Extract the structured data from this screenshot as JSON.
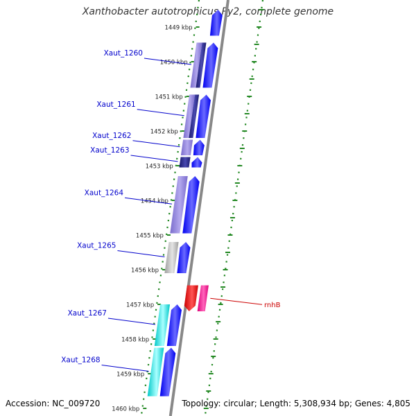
{
  "title": "Xanthobacter autotrophicus Py2, complete genome",
  "footer": {
    "accession": "Accession: NC_009720",
    "topology": "Topology: circular; Length: 5,308,934 bp; Genes: 4,805"
  },
  "colors": {
    "background": "#ffffff",
    "backbone": "#888888",
    "tick": "#228822",
    "label_blue": "#0000cc",
    "label_red": "#cc0000",
    "cds": "#0000ee",
    "gene_purple": "#7a6ccc",
    "gene_dark": "#1a1a6e",
    "gene_gray": "#b8b8b8",
    "gene_cyan": "#00e0e0",
    "rna_red": "#dd0000",
    "rna_pink": "#ee1188"
  },
  "scale": {
    "ticks": [
      {
        "kbp": 1449,
        "label": "1449 kbp"
      },
      {
        "kbp": 1450,
        "label": "1450 kbp"
      },
      {
        "kbp": 1451,
        "label": "1451 kbp"
      },
      {
        "kbp": 1452,
        "label": "1452 kbp"
      },
      {
        "kbp": 1453,
        "label": "1453 kbp"
      },
      {
        "kbp": 1454,
        "label": "1454 kbp"
      },
      {
        "kbp": 1455,
        "label": "1455 kbp"
      },
      {
        "kbp": 1456,
        "label": "1456 kbp"
      },
      {
        "kbp": 1457,
        "label": "1457 kbp"
      },
      {
        "kbp": 1458,
        "label": "1458 kbp"
      },
      {
        "kbp": 1459,
        "label": "1459 kbp"
      },
      {
        "kbp": 1460,
        "label": "1460 kbp"
      }
    ]
  },
  "genes": [
    {
      "label": "",
      "strand": "left",
      "start": 1448.5,
      "end": 1449.25,
      "type": "cds-only"
    },
    {
      "label": "Xaut_1260",
      "strand": "left",
      "start": 1449.45,
      "end": 1450.75,
      "type": "protein",
      "color": "purple-dark"
    },
    {
      "label": "Xaut_1261",
      "strand": "left",
      "start": 1450.95,
      "end": 1452.2,
      "type": "protein",
      "color": "purple-dark"
    },
    {
      "label": "Xaut_1262",
      "strand": "left",
      "start": 1452.25,
      "end": 1452.7,
      "type": "protein",
      "color": "purple"
    },
    {
      "label": "Xaut_1263",
      "strand": "left",
      "start": 1452.75,
      "end": 1453.05,
      "type": "protein",
      "color": "dark"
    },
    {
      "label": "Xaut_1264",
      "strand": "left",
      "start": 1453.3,
      "end": 1454.95,
      "type": "protein",
      "color": "purple"
    },
    {
      "label": "Xaut_1265",
      "strand": "left",
      "start": 1455.2,
      "end": 1456.1,
      "type": "protein",
      "color": "gray"
    },
    {
      "label": "Xaut_1267",
      "strand": "left",
      "start": 1457.0,
      "end": 1458.2,
      "type": "protein",
      "color": "cyan"
    },
    {
      "label": "Xaut_1268",
      "strand": "left",
      "start": 1458.25,
      "end": 1459.65,
      "type": "protein",
      "color": "cyan"
    },
    {
      "label": "rnhB",
      "strand": "right",
      "start": 1456.45,
      "end": 1457.2,
      "type": "rna"
    }
  ]
}
